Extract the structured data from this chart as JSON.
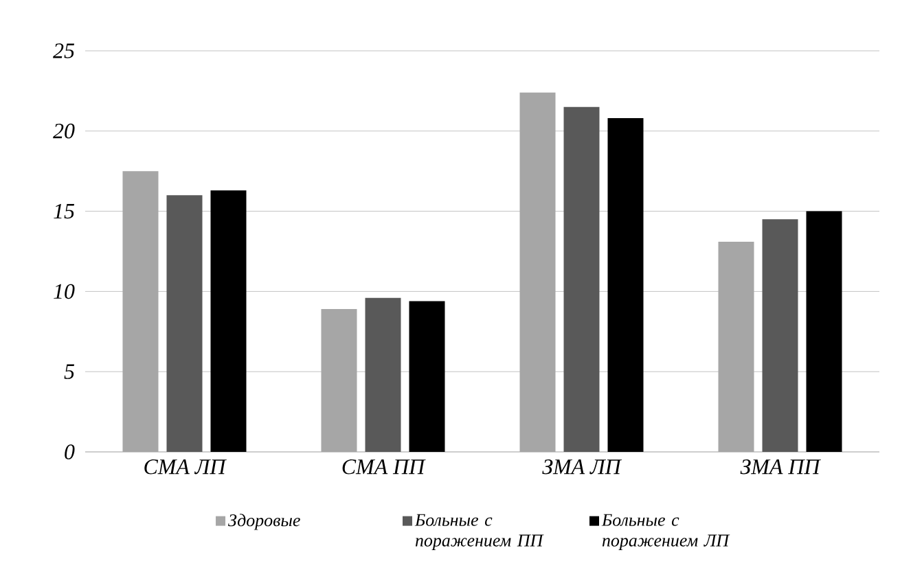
{
  "chart_data": {
    "type": "bar",
    "categories": [
      "СМА ЛП",
      "СМА ПП",
      "ЗМА ЛП",
      "ЗМА ПП"
    ],
    "series": [
      {
        "name": "Здоровые",
        "color": "#a6a6a6",
        "values": [
          17.5,
          8.9,
          22.4,
          13.1
        ]
      },
      {
        "name": "Больные с поражением ПП",
        "color": "#595959",
        "values": [
          16.0,
          9.6,
          21.5,
          14.5
        ]
      },
      {
        "name": "Больные с поражением ЛП",
        "color": "#000000",
        "values": [
          16.3,
          9.4,
          20.8,
          15.0
        ]
      }
    ],
    "ylim": [
      0,
      25
    ],
    "yticks": [
      0,
      5,
      10,
      15,
      20,
      25
    ],
    "grid": "y",
    "legend": "bottom"
  }
}
